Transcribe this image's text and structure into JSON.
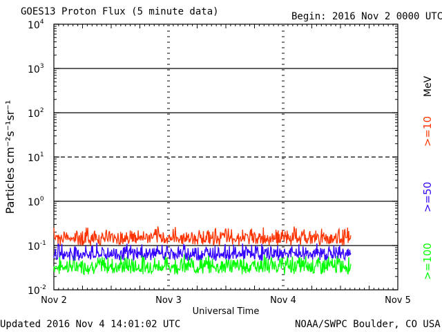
{
  "header": {
    "title": "GOES13 Proton Flux (5 minute data)",
    "begin": "Begin: 2016 Nov 2 0000 UTC"
  },
  "footer": {
    "updated": "Updated 2016 Nov  4 14:01:02 UTC",
    "source": "NOAA/SWPC Boulder, CO USA"
  },
  "legend": {
    "unit": "MeV",
    "items": [
      {
        "label": ">=10",
        "color": "#ff3300"
      },
      {
        "label": ">=50",
        "color": "#3300ff"
      },
      {
        "label": ">=100",
        "color": "#00ff00"
      }
    ]
  },
  "chart_data": {
    "type": "line",
    "title": "GOES13 Proton Flux (5 minute data)",
    "xlabel": "Universal Time",
    "ylabel": "Particles cm⁻²s⁻¹sr⁻¹",
    "yscale": "log",
    "ylim": [
      0.01,
      10000
    ],
    "xlim_days": [
      0,
      3
    ],
    "x_tick_labels": [
      "Nov 2",
      "Nov 3",
      "Nov 4",
      "Nov 5"
    ],
    "y_tick_labels": [
      {
        "base": "10",
        "exp": "-2"
      },
      {
        "base": "10",
        "exp": "-1"
      },
      {
        "base": "10",
        "exp": "0"
      },
      {
        "base": "10",
        "exp": "1"
      },
      {
        "base": "10",
        "exp": "2"
      },
      {
        "base": "10",
        "exp": "3"
      },
      {
        "base": "10",
        "exp": "4"
      }
    ],
    "gridlines": [
      {
        "value": 0.1,
        "style": "solid"
      },
      {
        "value": 1,
        "style": "solid"
      },
      {
        "value": 10,
        "style": "dashed"
      },
      {
        "value": 100,
        "style": "solid"
      },
      {
        "value": 1000,
        "style": "solid"
      }
    ],
    "data_span_days": [
      0,
      2.59
    ],
    "series": [
      {
        "name": ">=10 MeV",
        "color": "#ff3300",
        "typical_range": [
          0.1,
          0.28
        ]
      },
      {
        "name": ">=50 MeV",
        "color": "#3300ff",
        "typical_range": [
          0.045,
          0.12
        ]
      },
      {
        "name": ">=100 MeV",
        "color": "#00ff00",
        "typical_range": [
          0.022,
          0.07
        ]
      }
    ]
  }
}
